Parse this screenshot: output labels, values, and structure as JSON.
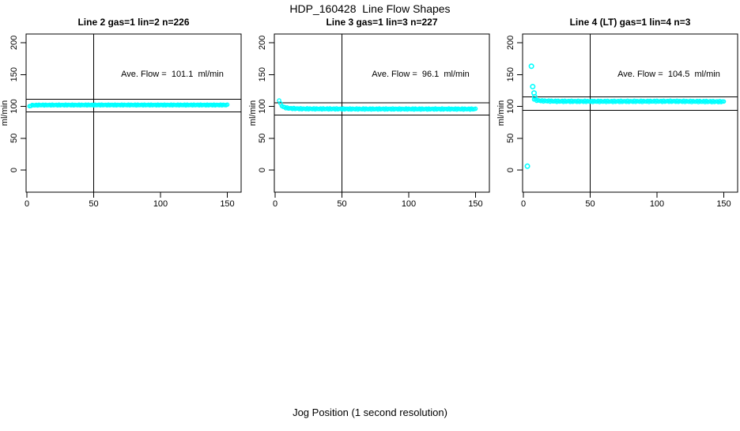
{
  "chart_data": {
    "type": "scatter",
    "title": "HDP_160428  Line Flow Shapes",
    "xlabel": "Jog Position (1 second resolution)",
    "ylabel": "ml/min",
    "background": "#FFFFFF",
    "point_color": "#00FFFF",
    "line_color": "#000000",
    "xticks": [
      0,
      50,
      100,
      150
    ],
    "yticks": [
      0,
      50,
      100,
      150,
      200
    ],
    "xlim": [
      0,
      150
    ],
    "ylim": [
      -35,
      214
    ],
    "vline_x": 50,
    "grid": "off",
    "legend": "none",
    "panels": [
      {
        "title": "Line 2 gas=1 lin=2 n=226",
        "ave_flow": 101.1,
        "ave_flow_label": "Ave. Flow =  101.1  ml/min",
        "hlines": [
          111.2,
          91.0
        ],
        "profile": [
          [
            2,
            99.8
          ],
          [
            3,
            101.2
          ],
          [
            4,
            101.8
          ],
          [
            10,
            102.1
          ],
          [
            60,
            102.2
          ],
          [
            150,
            102.2
          ]
        ],
        "jitter": 0.6,
        "outliers": []
      },
      {
        "title": "Line 3 gas=1 lin=3 n=227",
        "ave_flow": 96.1,
        "ave_flow_label": "Ave. Flow =  96.1  ml/min",
        "hlines": [
          105.7,
          86.5
        ],
        "profile": [
          [
            3,
            110
          ],
          [
            4,
            104
          ],
          [
            5,
            101
          ],
          [
            6,
            99.3
          ],
          [
            8,
            97.8
          ],
          [
            11,
            96.8
          ],
          [
            20,
            96.2
          ],
          [
            60,
            95.9
          ],
          [
            150,
            95.8
          ]
        ],
        "jitter": 0.8,
        "outliers": []
      },
      {
        "title": "Line 4 (LT) gas=1 lin=4 n=3",
        "ave_flow": 104.5,
        "ave_flow_label": "Ave. Flow =  104.5  ml/min",
        "hlines": [
          115.0,
          94.0
        ],
        "profile": [
          [
            8,
            111.5
          ],
          [
            10,
            109.5
          ],
          [
            14,
            108.6
          ],
          [
            25,
            108.0
          ],
          [
            60,
            107.8
          ],
          [
            110,
            108.0
          ],
          [
            150,
            107.4
          ]
        ],
        "jitter": 0.9,
        "outliers": [
          [
            6,
            163
          ],
          [
            7,
            131
          ],
          [
            8,
            121
          ],
          [
            8.5,
            115
          ],
          [
            3,
            6
          ]
        ]
      }
    ]
  }
}
